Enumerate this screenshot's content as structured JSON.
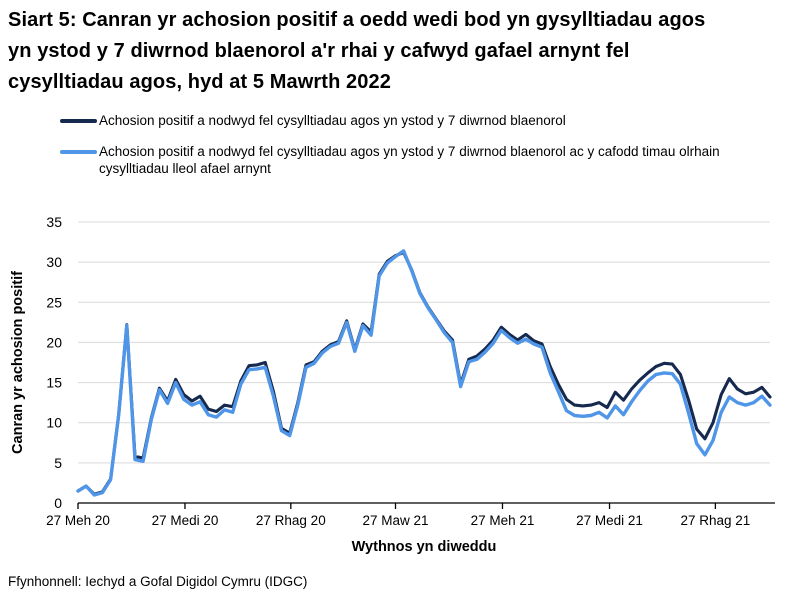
{
  "title": "Siart 5: Canran yr achosion positif a oedd wedi bod yn gysylltiadau agos yn ystod y 7 diwrnod blaenorol a'r rhai y cafwyd gafael arnynt fel cysylltiadau agos, hyd at 5 Mawrth 2022",
  "source": "Ffynhonnell: Iechyd a Gofal Digidol Cymru (IDGC)",
  "legend": {
    "series1": "Achosion positif a nodwyd fel cysylltiadau agos yn ystod y 7 diwrnod blaenorol",
    "series2": "Achosion positif a nodwyd fel cysylltiadau agos yn ystod y 7 diwrnod blaenorol ac y cafodd timau olrhain cysylltiadau lleol afael arnynt"
  },
  "colors": {
    "series1": "#16294e",
    "series2": "#4f95e8",
    "gridline": "#d9d9d9",
    "axis": "#000000"
  },
  "chart_data": {
    "type": "line",
    "title": "Siart 5: Canran yr achosion positif a oedd wedi bod yn gysylltiadau agos yn ystod y 7 diwrnod blaenorol a'r rhai y cafwyd gafael arnynt fel cysylltiadau agos, hyd at 5 Mawrth 2022",
    "xlabel": "Wythnos yn diweddu",
    "ylabel": "Canran yr achosion positif",
    "ylim": [
      0,
      35
    ],
    "yticks": [
      0,
      5,
      10,
      15,
      20,
      25,
      30,
      35
    ],
    "grid": "horizontal-only",
    "legend_position": "top",
    "x_unit": "weeks ending 27 Jun 2020 to 5 Mar 2022",
    "xticks": {
      "labels": [
        "27 Meh 20",
        "27 Medi 20",
        "27 Rhag 20",
        "27 Maw 21",
        "27 Meh 21",
        "27 Medi 21",
        "27 Rhag 21"
      ],
      "week_positions": [
        0,
        13.14,
        26.14,
        39,
        52.14,
        65.29,
        78.29
      ]
    },
    "series": [
      {
        "name": "Achosion positif a nodwyd fel cysylltiadau agos yn ystod y 7 diwrnod blaenorol",
        "color": "#16294e",
        "values": [
          1.5,
          2.1,
          1.1,
          1.4,
          3.0,
          11.0,
          22.2,
          5.8,
          5.6,
          10.6,
          14.3,
          12.7,
          15.4,
          13.5,
          12.7,
          13.3,
          11.7,
          11.4,
          12.2,
          12.0,
          15.2,
          17.1,
          17.2,
          17.5,
          13.9,
          9.3,
          8.7,
          12.5,
          17.2,
          17.6,
          18.9,
          19.7,
          20.1,
          22.7,
          19.1,
          22.3,
          21.3,
          28.5,
          30.1,
          30.8,
          31.2,
          29.0,
          26.2,
          24.4,
          22.9,
          21.4,
          20.3,
          14.8,
          17.9,
          18.3,
          19.2,
          20.3,
          21.9,
          21.0,
          20.3,
          21.0,
          20.2,
          19.8,
          17.0,
          14.8,
          12.9,
          12.2,
          12.1,
          12.2,
          12.5,
          11.9,
          13.8,
          12.8,
          14.2,
          15.3,
          16.2,
          17.0,
          17.4,
          17.3,
          16.0,
          12.8,
          9.2,
          8.0,
          10.0,
          13.5,
          15.5,
          14.2,
          13.6,
          13.8,
          14.4,
          13.2
        ]
      },
      {
        "name": "Achosion positif a nodwyd fel cysylltiadau agos yn ystod y 7 diwrnod blaenorol ac y cafodd timau olrhain cysylltiadau lleol afael arnynt",
        "color": "#4f95e8",
        "values": [
          1.5,
          2.1,
          1.0,
          1.3,
          2.9,
          11.0,
          22.1,
          5.4,
          5.2,
          10.4,
          14.1,
          12.4,
          15.0,
          12.9,
          12.2,
          12.6,
          11.0,
          10.7,
          11.6,
          11.3,
          14.8,
          16.6,
          16.7,
          16.9,
          13.3,
          9.0,
          8.4,
          12.2,
          16.9,
          17.4,
          18.7,
          19.5,
          19.9,
          22.5,
          18.9,
          22.1,
          20.9,
          28.3,
          29.9,
          30.7,
          31.4,
          28.9,
          26.1,
          24.3,
          22.8,
          21.2,
          20.0,
          14.5,
          17.6,
          17.9,
          18.8,
          19.9,
          21.5,
          20.6,
          19.9,
          20.4,
          19.8,
          19.4,
          16.2,
          13.9,
          11.5,
          10.9,
          10.8,
          10.9,
          11.3,
          10.6,
          12.1,
          11.0,
          12.6,
          14.0,
          15.2,
          16.0,
          16.2,
          16.1,
          14.8,
          11.2,
          7.4,
          6.0,
          7.8,
          11.3,
          13.2,
          12.5,
          12.2,
          12.5,
          13.3,
          12.2
        ]
      }
    ]
  }
}
